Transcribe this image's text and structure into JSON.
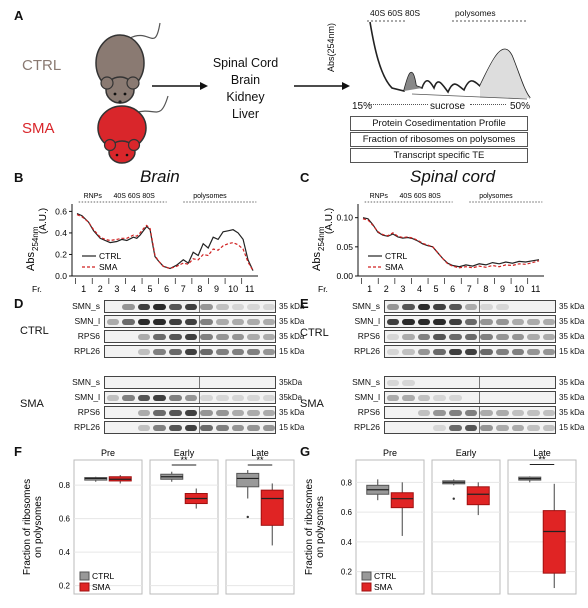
{
  "panel_labels": {
    "A": "A",
    "B": "B",
    "C": "C",
    "D": "D",
    "E": "E",
    "F": "F",
    "G": "G"
  },
  "panelA": {
    "ctrl": "CTRL",
    "sma": "SMA",
    "tissues": [
      "Spinal Cord",
      "Brain",
      "Kidney",
      "Liver"
    ],
    "profile_peaks": "40S 60S 80S",
    "profile_polysomes": "polysomes",
    "yaxis": "Abs(254nm)",
    "grad_low": "15%",
    "grad_mid": "sucrose",
    "grad_high": "50%",
    "boxes": [
      "Protein Cosedimentation Profile",
      "Fraction of ribosomes on polysomes",
      "Transcript specific TE"
    ],
    "colors": {
      "ctrl": "#8a7a72",
      "sma": "#d9262b"
    }
  },
  "chart_data": [
    {
      "type": "line",
      "title": "Brain",
      "annotations": {
        "rnps": "RNPs",
        "peaks": "40S 60S 80S",
        "polysomes": "polysomes"
      },
      "ylabel": "Abs",
      "ylabel_sub": "254nm",
      "yunit": "(A.U.)",
      "xlabel_prefix": "Fr.",
      "x_ticks": [
        "1",
        "2",
        "3",
        "4",
        "5",
        "6",
        "7",
        "8",
        "9",
        "10",
        "11"
      ],
      "y_ticks": [
        "0.0",
        "0.2",
        "0.4",
        "0.6"
      ],
      "ylim": [
        0,
        0.65
      ],
      "series": [
        {
          "name": "CTRL",
          "color": "#222222",
          "dash": false,
          "x": [
            0.6,
            0.9,
            1.3,
            1.6,
            2,
            2.3,
            2.6,
            3,
            3.3,
            3.6,
            4,
            4.2,
            4.4,
            4.6,
            4.8,
            5,
            5.15,
            5.3,
            5.5,
            5.8,
            6.2,
            6.6,
            7,
            7.3,
            7.6,
            7.9,
            8.2,
            8.5,
            8.8,
            9.1,
            9.4,
            9.7,
            10,
            10.3,
            10.6,
            10.9,
            11.2
          ],
          "y": [
            0.58,
            0.56,
            0.5,
            0.42,
            0.35,
            0.33,
            0.31,
            0.32,
            0.34,
            0.33,
            0.36,
            0.35,
            0.38,
            0.42,
            0.46,
            0.43,
            0.3,
            0.18,
            0.14,
            0.09,
            0.07,
            0.1,
            0.15,
            0.12,
            0.22,
            0.19,
            0.3,
            0.26,
            0.36,
            0.34,
            0.41,
            0.42,
            0.43,
            0.4,
            0.34,
            0.15,
            0.05
          ]
        },
        {
          "name": "SMA",
          "color": "#d02020",
          "dash": true,
          "x": [
            0.6,
            0.9,
            1.3,
            1.6,
            2,
            2.3,
            2.6,
            3,
            3.3,
            3.6,
            4,
            4.2,
            4.4,
            4.6,
            4.8,
            5,
            5.15,
            5.3,
            5.5,
            5.8,
            6.2,
            6.6,
            7,
            7.3,
            7.6,
            7.9,
            8.2,
            8.5,
            8.8,
            9.1,
            9.4,
            9.7,
            10,
            10.3,
            10.6,
            10.9,
            11.2
          ],
          "y": [
            0.57,
            0.55,
            0.5,
            0.43,
            0.36,
            0.34,
            0.33,
            0.34,
            0.35,
            0.35,
            0.38,
            0.37,
            0.4,
            0.44,
            0.47,
            0.44,
            0.32,
            0.19,
            0.14,
            0.09,
            0.07,
            0.09,
            0.12,
            0.11,
            0.16,
            0.15,
            0.2,
            0.19,
            0.25,
            0.24,
            0.28,
            0.3,
            0.31,
            0.29,
            0.25,
            0.13,
            0.05
          ]
        }
      ]
    },
    {
      "type": "line",
      "title": "Spinal cord",
      "annotations": {
        "rnps": "RNPs",
        "peaks": "40S 60S 80S",
        "polysomes": "polysomes"
      },
      "ylabel": "Abs",
      "ylabel_sub": "254nm",
      "yunit": "(A.U.)",
      "xlabel_prefix": "Fr.",
      "x_ticks": [
        "1",
        "2",
        "3",
        "4",
        "5",
        "6",
        "7",
        "8",
        "9",
        "10",
        "11"
      ],
      "y_ticks": [
        "0.00",
        "0.05",
        "0.10"
      ],
      "ylim": [
        0,
        0.12
      ],
      "series": [
        {
          "name": "CTRL",
          "color": "#222222",
          "dash": false,
          "x": [
            0.6,
            0.9,
            1.2,
            1.5,
            1.8,
            2.1,
            2.4,
            2.7,
            3,
            3.3,
            3.6,
            3.9,
            4.2,
            4.5,
            4.8,
            5.1,
            5.4,
            5.7,
            6,
            6.4,
            6.8,
            7.2,
            7.6,
            8,
            8.4,
            8.8,
            9.2,
            9.6,
            10,
            10.4,
            10.8,
            11.2
          ],
          "y": [
            0.1,
            0.098,
            0.088,
            0.075,
            0.07,
            0.068,
            0.072,
            0.067,
            0.065,
            0.066,
            0.064,
            0.06,
            0.055,
            0.052,
            0.05,
            0.04,
            0.03,
            0.022,
            0.018,
            0.016,
            0.019,
            0.017,
            0.021,
            0.019,
            0.023,
            0.021,
            0.024,
            0.022,
            0.025,
            0.024,
            0.026,
            0.028
          ]
        },
        {
          "name": "SMA",
          "color": "#d02020",
          "dash": true,
          "x": [
            0.6,
            0.9,
            1.2,
            1.5,
            1.8,
            2.1,
            2.4,
            2.7,
            3,
            3.3,
            3.6,
            3.9,
            4.2,
            4.5,
            4.8,
            5.1,
            5.4,
            5.7,
            6,
            6.4,
            6.8,
            7.2,
            7.6,
            8,
            8.4,
            8.8,
            9.2,
            9.6,
            10,
            10.4,
            10.8,
            11.2
          ],
          "y": [
            0.098,
            0.096,
            0.087,
            0.076,
            0.071,
            0.069,
            0.074,
            0.068,
            0.066,
            0.067,
            0.065,
            0.061,
            0.056,
            0.053,
            0.05,
            0.04,
            0.03,
            0.021,
            0.017,
            0.014,
            0.016,
            0.014,
            0.017,
            0.015,
            0.018,
            0.016,
            0.019,
            0.018,
            0.021,
            0.02,
            0.023,
            0.026
          ]
        }
      ]
    },
    {
      "type": "box",
      "ylabel": "Fraction of ribosomes\non polysomes",
      "y_ticks": [
        "0.2",
        "0.4",
        "0.6",
        "0.8"
      ],
      "ylim": [
        0.15,
        0.95
      ],
      "legend": [
        "CTRL",
        "SMA"
      ],
      "facets": [
        {
          "name": "Pre",
          "sig": "",
          "CTRL": {
            "min": 0.82,
            "q1": 0.83,
            "med": 0.84,
            "q3": 0.845,
            "max": 0.85,
            "out": []
          },
          "SMA": {
            "min": 0.81,
            "q1": 0.825,
            "med": 0.835,
            "q3": 0.85,
            "max": 0.86,
            "out": []
          }
        },
        {
          "name": "Early",
          "sig": "**",
          "CTRL": {
            "min": 0.82,
            "q1": 0.835,
            "med": 0.85,
            "q3": 0.865,
            "max": 0.88,
            "out": []
          },
          "SMA": {
            "min": 0.66,
            "q1": 0.69,
            "med": 0.72,
            "q3": 0.75,
            "max": 0.78,
            "out": []
          }
        },
        {
          "name": "Late",
          "sig": "**",
          "CTRL": {
            "min": 0.72,
            "q1": 0.79,
            "med": 0.84,
            "q3": 0.87,
            "max": 0.89,
            "out": [
              0.61
            ]
          },
          "SMA": {
            "min": 0.44,
            "q1": 0.56,
            "med": 0.72,
            "q3": 0.77,
            "max": 0.81,
            "out": []
          }
        }
      ]
    },
    {
      "type": "box",
      "ylabel": "Fraction of ribosomes\non polysomes",
      "y_ticks": [
        "0.2",
        "0.4",
        "0.6",
        "0.8"
      ],
      "ylim": [
        0.05,
        0.95
      ],
      "legend": [
        "CTRL",
        "SMA"
      ],
      "facets": [
        {
          "name": "Pre",
          "sig": "",
          "CTRL": {
            "min": 0.68,
            "q1": 0.72,
            "med": 0.75,
            "q3": 0.78,
            "max": 0.82,
            "out": []
          },
          "SMA": {
            "min": 0.44,
            "q1": 0.63,
            "med": 0.69,
            "q3": 0.73,
            "max": 0.8,
            "out": []
          }
        },
        {
          "name": "Early",
          "sig": "",
          "CTRL": {
            "min": 0.78,
            "q1": 0.79,
            "med": 0.8,
            "q3": 0.81,
            "max": 0.82,
            "out": [
              0.69
            ]
          },
          "SMA": {
            "min": 0.58,
            "q1": 0.65,
            "med": 0.72,
            "q3": 0.77,
            "max": 0.8,
            "out": []
          }
        },
        {
          "name": "Late",
          "sig": "**",
          "CTRL": {
            "min": 0.8,
            "q1": 0.815,
            "med": 0.825,
            "q3": 0.835,
            "max": 0.84,
            "out": []
          },
          "SMA": {
            "min": 0.09,
            "q1": 0.19,
            "med": 0.47,
            "q3": 0.61,
            "max": 0.79,
            "out": []
          }
        }
      ]
    }
  ],
  "blots": {
    "ctrl_label": "CTRL",
    "sma_label": "SMA",
    "brain_ctrl_rows": [
      "SMN_s",
      "SMN_l",
      "RPS6",
      "RPL26"
    ],
    "brain_ctrl_kda": [
      "35 kDa",
      "35 kDa",
      "35 kDa",
      "15 kDa"
    ],
    "brain_sma_rows": [
      "SMN_s",
      "SMN_l",
      "RPS6",
      "RPL26"
    ],
    "brain_sma_kda": [
      "35kDa",
      "35kDa",
      "35 kDa",
      "15 kDa"
    ],
    "cord_ctrl_rows": [
      "SMN_s",
      "SMN_l",
      "RPS6",
      "RPL26"
    ],
    "cord_ctrl_kda": [
      "35 kDa",
      "35 kDa",
      "35 kDa",
      "15 kDa"
    ],
    "cord_sma_rows": [
      "SMN_s",
      "SMN_l",
      "RPS6",
      "RPL26"
    ],
    "cord_sma_kda": [
      "35 kDa",
      "35 kDa",
      "35 kDa",
      "15 kDa"
    ]
  }
}
